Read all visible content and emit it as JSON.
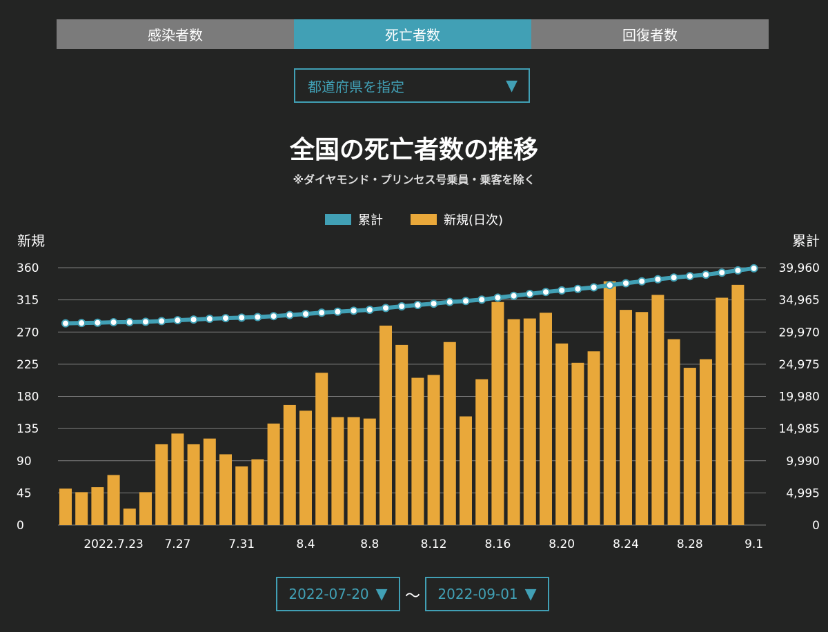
{
  "tabs": [
    {
      "label": "感染者数",
      "active": false
    },
    {
      "label": "死亡者数",
      "active": true
    },
    {
      "label": "回復者数",
      "active": false
    }
  ],
  "prefecture_select": {
    "label": "都道府県を指定"
  },
  "title": "全国の死亡者数の推移",
  "subtitle": "※ダイヤモンド・プリンセス号乗員・乗客を除く",
  "legend": {
    "cumulative": "累計",
    "daily": "新規(日次)"
  },
  "axis": {
    "left_label": "新規",
    "right_label": "累計"
  },
  "date_range": {
    "start": "2022-07-20",
    "end": "2022-09-01",
    "separator": "〜"
  },
  "colors": {
    "line": "#41a0b5",
    "bar": "#e9a83a",
    "marker_fill": "#ffffff",
    "marker_stroke": "#41a0b5",
    "grid": "#7f7f7f"
  },
  "chart_data": {
    "type": "bar",
    "categories": [
      "7.20",
      "7.21",
      "7.22",
      "7.23",
      "7.24",
      "7.25",
      "7.26",
      "7.27",
      "7.28",
      "7.29",
      "7.30",
      "7.31",
      "8.1",
      "8.2",
      "8.3",
      "8.4",
      "8.5",
      "8.6",
      "8.7",
      "8.8",
      "8.9",
      "8.10",
      "8.11",
      "8.12",
      "8.13",
      "8.14",
      "8.15",
      "8.16",
      "8.17",
      "8.18",
      "8.19",
      "8.20",
      "8.21",
      "8.22",
      "8.23",
      "8.24",
      "8.25",
      "8.26",
      "8.27",
      "8.28",
      "8.29",
      "8.30",
      "8.31",
      "9.1"
    ],
    "x_tick_labels": [
      {
        "index": 3,
        "label": "2022.7.23"
      },
      {
        "index": 7,
        "label": "7.27"
      },
      {
        "index": 11,
        "label": "7.31"
      },
      {
        "index": 15,
        "label": "8.4"
      },
      {
        "index": 19,
        "label": "8.8"
      },
      {
        "index": 23,
        "label": "8.12"
      },
      {
        "index": 27,
        "label": "8.16"
      },
      {
        "index": 31,
        "label": "8.20"
      },
      {
        "index": 35,
        "label": "8.24"
      },
      {
        "index": 39,
        "label": "8.28"
      },
      {
        "index": 43,
        "label": "9.1"
      }
    ],
    "series": [
      {
        "name": "新規(日次)",
        "type": "bar",
        "axis": "left",
        "values": [
          51,
          46,
          53,
          70,
          23,
          46,
          113,
          128,
          113,
          121,
          99,
          82,
          92,
          142,
          168,
          160,
          213,
          151,
          151,
          149,
          279,
          252,
          206,
          210,
          256,
          152,
          204,
          312,
          288,
          289,
          297,
          254,
          227,
          243,
          341,
          301,
          298,
          322,
          260,
          220,
          232,
          318,
          336,
          null
        ]
      },
      {
        "name": "累計",
        "type": "line",
        "axis": "right",
        "values": [
          31320,
          31370,
          31420,
          31490,
          31510,
          31560,
          31670,
          31800,
          31910,
          32030,
          32130,
          32210,
          32300,
          32440,
          32610,
          32770,
          32980,
          33130,
          33280,
          33430,
          33710,
          33960,
          34170,
          34380,
          34640,
          34790,
          35000,
          35310,
          35600,
          35890,
          36190,
          36440,
          36670,
          36910,
          37250,
          37550,
          37850,
          38170,
          38430,
          38650,
          38880,
          39200,
          39540,
          39860
        ]
      }
    ],
    "y_left": {
      "min": 0,
      "max": 360,
      "ticks": [
        0,
        45,
        90,
        135,
        180,
        225,
        270,
        315,
        360
      ]
    },
    "y_right": {
      "min": 0,
      "max": 39960,
      "ticks": [
        "0",
        "4,995",
        "9,990",
        "14,985",
        "19,980",
        "24,975",
        "29,970",
        "34,965",
        "39,960"
      ]
    },
    "grid": true,
    "legend_position": "top"
  }
}
